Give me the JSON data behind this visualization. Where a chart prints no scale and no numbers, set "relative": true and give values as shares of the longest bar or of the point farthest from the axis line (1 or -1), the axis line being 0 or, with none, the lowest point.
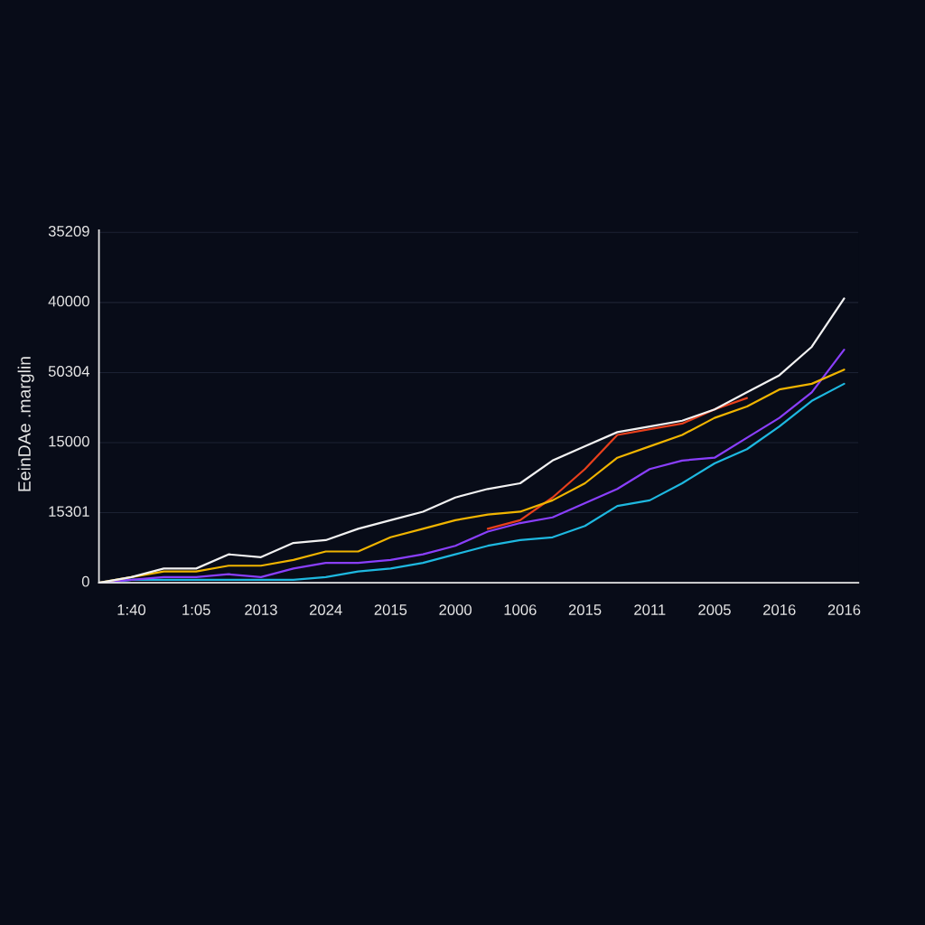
{
  "chart_data": {
    "type": "line",
    "relative": true,
    "ylabel": "EeinDAe .marglin",
    "categories": [
      null,
      "1:40",
      null,
      "1:05",
      null,
      "2013",
      null,
      "2024",
      null,
      "2015",
      null,
      "2000",
      null,
      "1006",
      null,
      "2015",
      null,
      "2011",
      null,
      "2005",
      null,
      "2016",
      null,
      "2016"
    ],
    "annotations": [
      "35209",
      "40000",
      "50304",
      "15000",
      "15301",
      "0"
    ],
    "grid": "y",
    "marker": "none",
    "line_style": "solid",
    "series": [
      {
        "color": "#f2f2f2",
        "values": [
          0,
          0.02,
          0.05,
          0.05,
          0.1,
          0.09,
          0.14,
          0.15,
          0.19,
          0.22,
          0.25,
          0.3,
          0.33,
          0.35,
          0.43,
          0.48,
          0.53,
          0.55,
          0.57,
          0.61,
          0.67,
          0.73,
          0.83,
          1
        ]
      },
      {
        "color": "#f0b400",
        "values": [
          0,
          0.02,
          0.04,
          0.04,
          0.06,
          0.06,
          0.08,
          0.11,
          0.11,
          0.16,
          0.19,
          0.22,
          0.24,
          0.25,
          0.29,
          0.35,
          0.44,
          0.48,
          0.52,
          0.58,
          0.62,
          0.68,
          0.7,
          0.75
        ]
      },
      {
        "color": "#e8401c",
        "values": [
          null,
          null,
          null,
          null,
          null,
          null,
          null,
          null,
          null,
          null,
          null,
          null,
          0.19,
          0.22,
          0.3,
          0.4,
          0.52,
          0.54,
          0.56,
          0.61,
          0.65,
          null,
          null,
          null
        ]
      },
      {
        "color": "#8a3ffc",
        "values": [
          0,
          0.01,
          0.02,
          0.02,
          0.03,
          0.02,
          0.05,
          0.07,
          0.07,
          0.08,
          0.1,
          0.13,
          0.18,
          0.21,
          0.23,
          0.28,
          0.33,
          0.4,
          0.43,
          0.44,
          0.51,
          0.58,
          0.67,
          0.82
        ]
      },
      {
        "color": "#1eb8e0",
        "values": [
          0,
          0.01,
          0.01,
          0.01,
          0.01,
          0.01,
          0.01,
          0.02,
          0.04,
          0.05,
          0.07,
          0.1,
          0.13,
          0.15,
          0.16,
          0.2,
          0.27,
          0.29,
          0.35,
          0.42,
          0.47,
          0.55,
          0.64,
          0.7
        ]
      }
    ]
  }
}
